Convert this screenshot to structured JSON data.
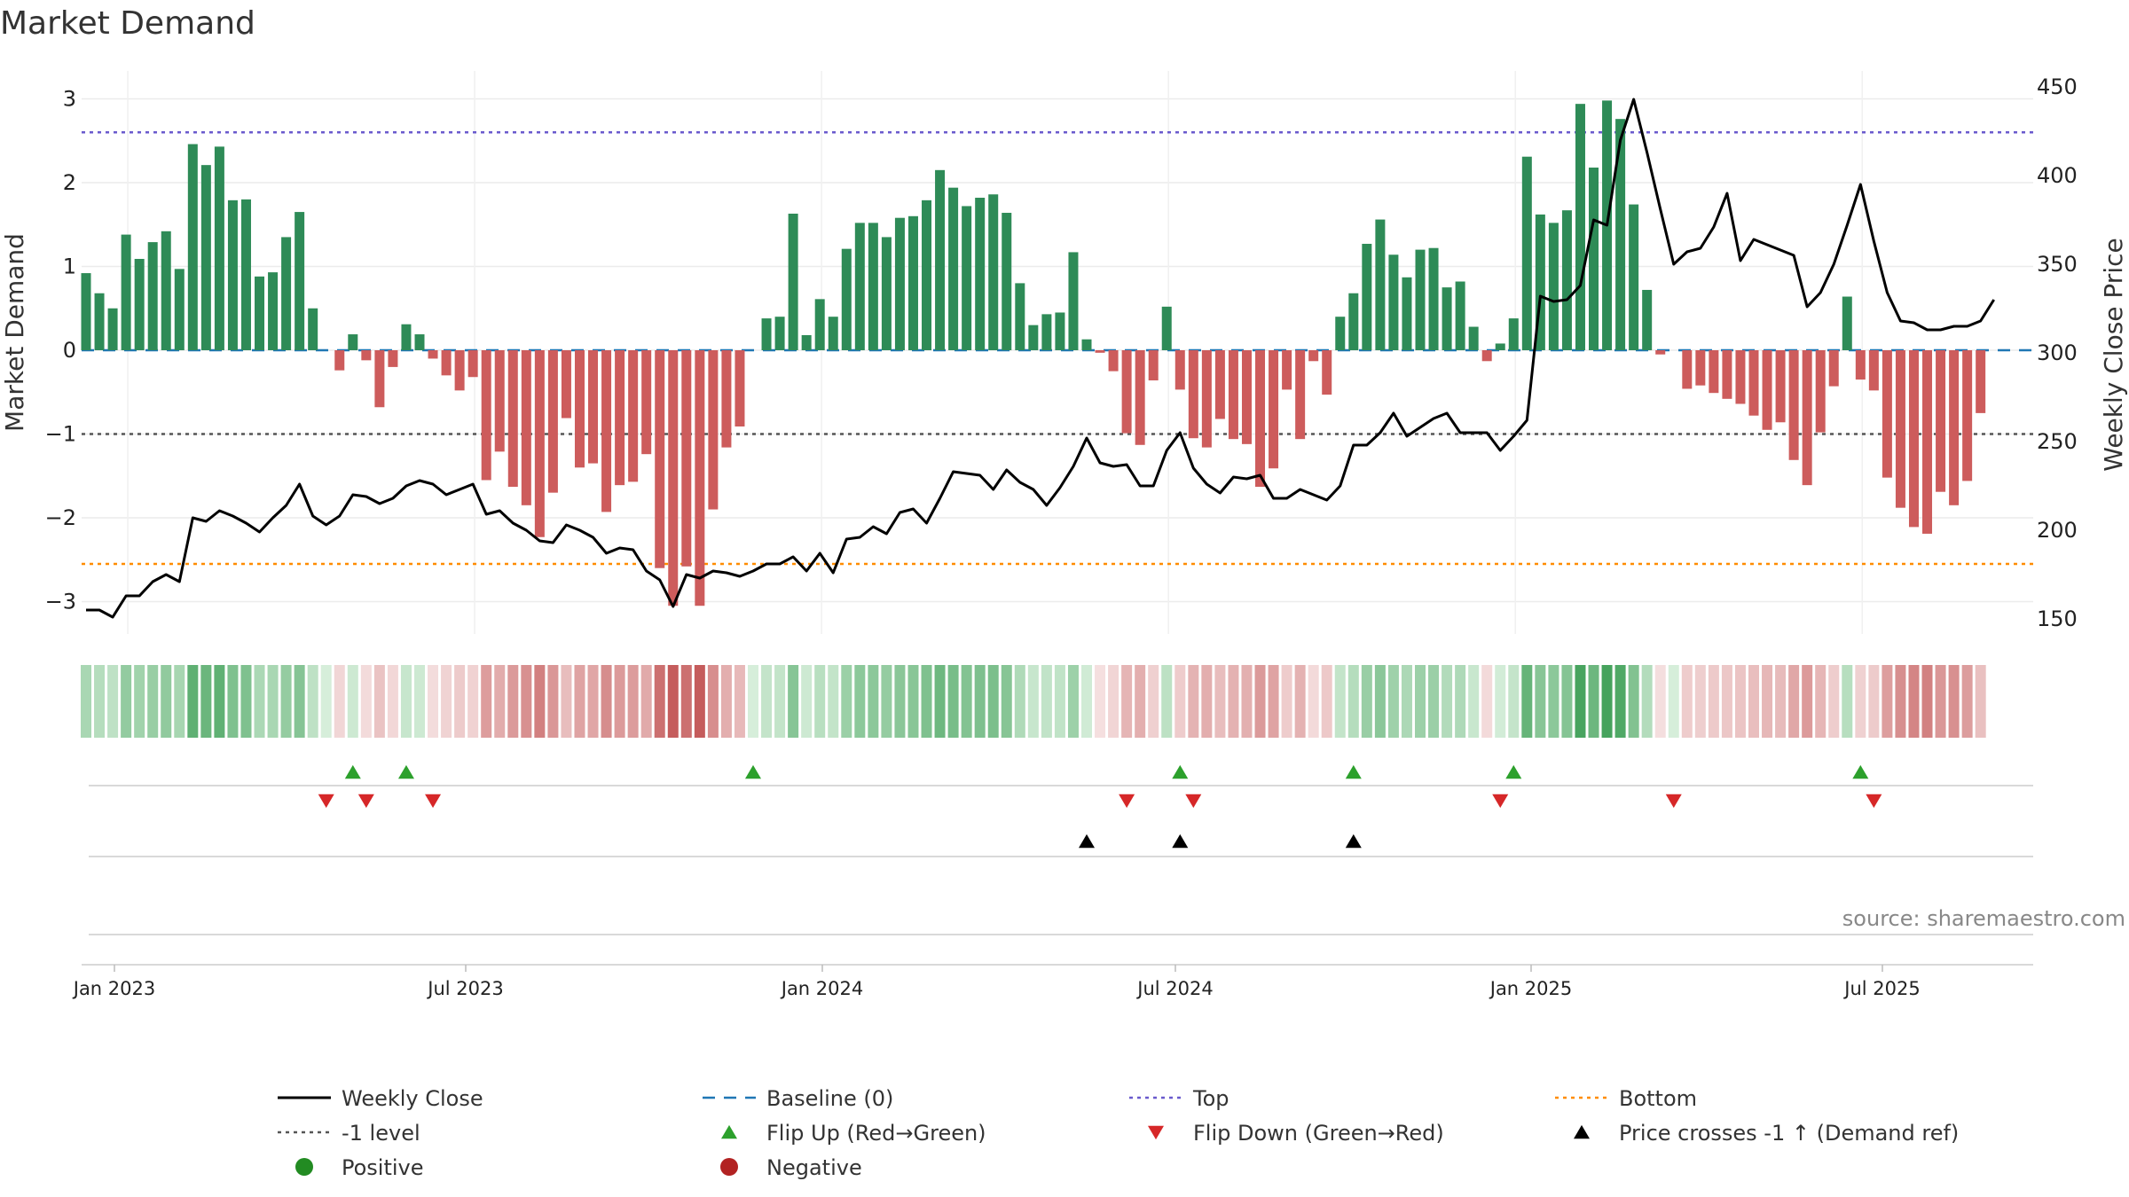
{
  "colors": {
    "pos_bar": "#2e8b57",
    "neg_bar": "#cd5c5c",
    "price_line": "#000000",
    "baseline": "#1f77b4",
    "top_line": "#6a5acd",
    "bottom_line": "#ff8c00",
    "minus1_line": "#555555",
    "flip_up": "#2ca02c",
    "flip_down": "#d62728",
    "cross": "#000000",
    "positive_dot": "#228b22",
    "negative_dot": "#b22222"
  },
  "chart_data": {
    "type": "bar",
    "title": "Market Demand",
    "ylabel": "Market Demand",
    "y2label": "Weekly Close Price",
    "ylim": [
      -3.3,
      3.2
    ],
    "y2lim": [
      140,
      455
    ],
    "yticks": [
      "3",
      "2",
      "1",
      "0",
      "−1",
      "−2",
      "−3"
    ],
    "y2ticks": [
      "450",
      "400",
      "350",
      "300",
      "250",
      "200",
      "150"
    ],
    "xtick_labels": [
      "Jan 2023",
      "Jul 2023",
      "Jan 2024",
      "Jul 2024",
      "Jan 2025",
      "Jul 2025"
    ],
    "reference_lines": {
      "top": 2.6,
      "bottom": -2.55,
      "minus1": -1.0,
      "baseline": 0
    },
    "demand": [
      0.92,
      0.68,
      0.5,
      1.38,
      1.09,
      1.29,
      1.42,
      0.97,
      2.46,
      2.21,
      2.43,
      1.79,
      1.8,
      0.88,
      0.93,
      1.35,
      1.65,
      0.5,
      0.0,
      -0.24,
      0.19,
      -0.12,
      -0.68,
      -0.2,
      0.31,
      0.19,
      -0.1,
      -0.3,
      -0.48,
      -0.32,
      -1.55,
      -1.21,
      -1.63,
      -1.85,
      -2.23,
      -1.7,
      -0.81,
      -1.4,
      -1.35,
      -1.93,
      -1.61,
      -1.57,
      -1.24,
      -2.6,
      -3.05,
      -2.58,
      -3.05,
      -1.9,
      -1.16,
      -0.91,
      0.0,
      0.38,
      0.4,
      1.63,
      0.18,
      0.61,
      0.4,
      1.21,
      1.52,
      1.52,
      1.35,
      1.58,
      1.6,
      1.79,
      2.15,
      1.94,
      1.72,
      1.82,
      1.86,
      1.64,
      0.8,
      0.3,
      0.43,
      0.45,
      1.17,
      0.13,
      -0.03,
      -0.25,
      -0.99,
      -1.13,
      -0.36,
      0.52,
      -0.47,
      -1.05,
      -1.16,
      -0.82,
      -1.06,
      -1.12,
      -1.63,
      -1.41,
      -0.47,
      -1.06,
      -0.13,
      -0.53,
      0.4,
      0.68,
      1.27,
      1.56,
      1.14,
      0.87,
      1.2,
      1.22,
      0.75,
      0.82,
      0.28,
      -0.13,
      0.08,
      0.38,
      2.31,
      1.62,
      1.52,
      1.67,
      2.94,
      2.18,
      2.98,
      2.76,
      1.74,
      0.72,
      -0.05,
      0.0,
      -0.46,
      -0.42,
      -0.51,
      -0.58,
      -0.64,
      -0.78,
      -0.95,
      -0.86,
      -1.31,
      -1.61,
      -0.98,
      -0.43,
      0.64,
      -0.35,
      -0.48,
      -1.52,
      -1.88,
      -2.11,
      -2.19,
      -1.69,
      -1.85,
      -1.56,
      -0.75
    ],
    "weekly_close": [
      155,
      155,
      151,
      163,
      163,
      171,
      175,
      171,
      207,
      205,
      211,
      208,
      204,
      199,
      207,
      214,
      226,
      208,
      203,
      208,
      220,
      219,
      215,
      218,
      225,
      228,
      226,
      220,
      223,
      226,
      209,
      211,
      204,
      200,
      194,
      193,
      203,
      200,
      196,
      187,
      190,
      189,
      177,
      172,
      157,
      175,
      173,
      177,
      176,
      174,
      177,
      181,
      181,
      185,
      177,
      187,
      176,
      195,
      196,
      202,
      198,
      210,
      212,
      204,
      218,
      233,
      232,
      231,
      223,
      234,
      227,
      223,
      214,
      224,
      236,
      252,
      238,
      236,
      237,
      225,
      225,
      245,
      255,
      235,
      226,
      221,
      230,
      229,
      231,
      218,
      218,
      223,
      220,
      217,
      225,
      248,
      248,
      255,
      266,
      253,
      258,
      263,
      266,
      255,
      255,
      255,
      245,
      253,
      262,
      332,
      329,
      330,
      338,
      375,
      372,
      420,
      443,
      413,
      381,
      350,
      357,
      359,
      371,
      390,
      352,
      364,
      361,
      358,
      355,
      326,
      334,
      350,
      372,
      395,
      363,
      334,
      318,
      317,
      313,
      313,
      315,
      315,
      318,
      330
    ],
    "flip_up_weeks": [
      20,
      24,
      50,
      82,
      95,
      107,
      133
    ],
    "flip_down_weeks": [
      18,
      21,
      26,
      78,
      83,
      106,
      119,
      134
    ],
    "cross_weeks": [
      75,
      82,
      95
    ]
  },
  "legend": [
    {
      "label": "Weekly Close",
      "icon": "solid-line-icon"
    },
    {
      "label": "Baseline (0)",
      "icon": "dashed-line-icon"
    },
    {
      "label": "Top",
      "icon": "dotted-line-icon"
    },
    {
      "label": "Bottom",
      "icon": "dotted-line-icon"
    },
    {
      "label": "-1 level",
      "icon": "dotted-line-icon"
    },
    {
      "label": "Flip Up (Red→Green)",
      "icon": "triangle-up-icon"
    },
    {
      "label": "Flip Down (Green→Red)",
      "icon": "triangle-down-icon"
    },
    {
      "label": "Price crosses -1 ↑ (Demand ref)",
      "icon": "triangle-up-icon"
    },
    {
      "label": "Positive",
      "icon": "circle-icon"
    },
    {
      "label": "Negative",
      "icon": "circle-icon"
    }
  ],
  "source": "source: sharemaestro.com"
}
